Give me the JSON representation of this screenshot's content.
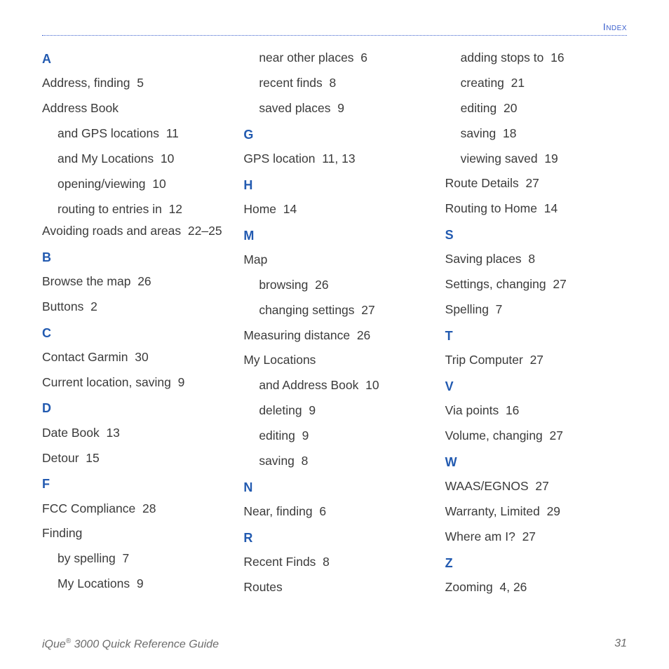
{
  "header": {
    "section": "Index"
  },
  "footer": {
    "product_prefix": "iQue",
    "product_reg": "®",
    "product_rest": " 3000 Quick Reference Guide",
    "page_number": "31"
  },
  "colors": {
    "accent": "#225ab0",
    "rule": "#3a5fcd",
    "body": "#3b3b3b",
    "footer": "#6b6b6b"
  },
  "typography": {
    "body_fontsize_pt": 13,
    "letter_fontsize_pt": 13.5,
    "line_height": 2.05
  },
  "index": {
    "blocks": [
      {
        "type": "letter",
        "label": "A"
      },
      {
        "type": "entry",
        "text": "Address, finding",
        "page": "5"
      },
      {
        "type": "entry",
        "text": "Address Book"
      },
      {
        "type": "sub",
        "text": "and GPS locations",
        "page": "11"
      },
      {
        "type": "sub",
        "text": "and My Locations",
        "page": "10"
      },
      {
        "type": "sub",
        "text": "opening/viewing",
        "page": "10"
      },
      {
        "type": "sub",
        "text": "routing to entries in",
        "page": "12"
      },
      {
        "type": "entry",
        "text": "Avoiding roads and areas",
        "page": "22–25",
        "wrap": true
      },
      {
        "type": "letter",
        "label": "B"
      },
      {
        "type": "entry",
        "text": "Browse the map",
        "page": "26"
      },
      {
        "type": "entry",
        "text": "Buttons",
        "page": "2"
      },
      {
        "type": "letter",
        "label": "C"
      },
      {
        "type": "entry",
        "text": "Contact Garmin",
        "page": "30"
      },
      {
        "type": "entry",
        "text": "Current location, saving",
        "page": "9"
      },
      {
        "type": "letter",
        "label": "D"
      },
      {
        "type": "entry",
        "text": "Date Book",
        "page": "13"
      },
      {
        "type": "entry",
        "text": "Detour",
        "page": "15"
      },
      {
        "type": "letter",
        "label": "F"
      },
      {
        "type": "entry",
        "text": "FCC Compliance",
        "page": "28"
      },
      {
        "type": "entry",
        "text": "Finding"
      },
      {
        "type": "sub",
        "text": "by spelling",
        "page": "7"
      },
      {
        "type": "sub",
        "text": "My Locations",
        "page": "9"
      },
      {
        "type": "sub",
        "text": "near other places",
        "page": "6"
      },
      {
        "type": "sub",
        "text": "recent finds",
        "page": "8"
      },
      {
        "type": "sub",
        "text": "saved places",
        "page": "9"
      },
      {
        "type": "letter",
        "label": "G"
      },
      {
        "type": "entry",
        "text": "GPS location",
        "page": "11, 13"
      },
      {
        "type": "letter",
        "label": "H"
      },
      {
        "type": "entry",
        "text": "Home",
        "page": "14"
      },
      {
        "type": "letter",
        "label": "M"
      },
      {
        "type": "entry",
        "text": "Map"
      },
      {
        "type": "sub",
        "text": "browsing",
        "page": "26"
      },
      {
        "type": "sub",
        "text": "changing settings",
        "page": "27"
      },
      {
        "type": "entry",
        "text": "Measuring distance",
        "page": "26"
      },
      {
        "type": "entry",
        "text": "My Locations"
      },
      {
        "type": "sub",
        "text": "and Address Book",
        "page": "10"
      },
      {
        "type": "sub",
        "text": "deleting",
        "page": "9"
      },
      {
        "type": "sub",
        "text": "editing",
        "page": "9"
      },
      {
        "type": "sub",
        "text": "saving",
        "page": "8"
      },
      {
        "type": "letter",
        "label": "N"
      },
      {
        "type": "entry",
        "text": "Near, finding",
        "page": "6"
      },
      {
        "type": "letter",
        "label": "R"
      },
      {
        "type": "entry",
        "text": "Recent Finds",
        "page": "8"
      },
      {
        "type": "entry",
        "text": "Routes"
      },
      {
        "type": "sub",
        "text": "adding stops to",
        "page": "16"
      },
      {
        "type": "sub",
        "text": "creating",
        "page": "21"
      },
      {
        "type": "sub",
        "text": "editing",
        "page": "20"
      },
      {
        "type": "sub",
        "text": "saving",
        "page": "18"
      },
      {
        "type": "sub",
        "text": "viewing saved",
        "page": "19"
      },
      {
        "type": "entry",
        "text": "Route Details",
        "page": "27"
      },
      {
        "type": "entry",
        "text": "Routing to Home",
        "page": "14"
      },
      {
        "type": "letter",
        "label": "S"
      },
      {
        "type": "entry",
        "text": "Saving places",
        "page": "8"
      },
      {
        "type": "entry",
        "text": "Settings, changing",
        "page": "27"
      },
      {
        "type": "entry",
        "text": "Spelling",
        "page": "7"
      },
      {
        "type": "letter",
        "label": "T"
      },
      {
        "type": "entry",
        "text": "Trip Computer",
        "page": "27"
      },
      {
        "type": "letter",
        "label": "V"
      },
      {
        "type": "entry",
        "text": "Via points",
        "page": "16"
      },
      {
        "type": "entry",
        "text": "Volume, changing",
        "page": "27"
      },
      {
        "type": "letter",
        "label": "W"
      },
      {
        "type": "entry",
        "text": "WAAS/EGNOS",
        "page": "27"
      },
      {
        "type": "entry",
        "text": "Warranty, Limited",
        "page": "29"
      },
      {
        "type": "entry",
        "text": "Where am I?",
        "page": "27"
      },
      {
        "type": "letter",
        "label": "Z"
      },
      {
        "type": "entry",
        "text": "Zooming",
        "page": "4, 26"
      }
    ]
  }
}
